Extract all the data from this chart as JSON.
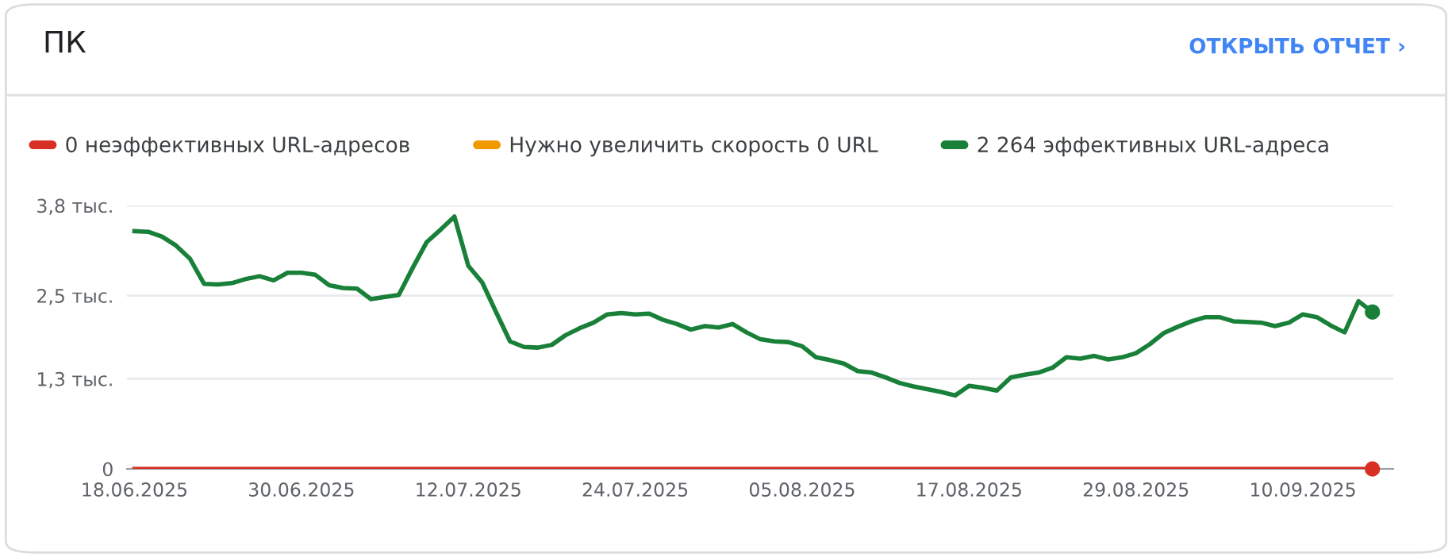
{
  "chart_data": {
    "type": "line",
    "title": "ПК",
    "annotations": [
      "ОТКРЫТЬ ОТЧЕТ ›"
    ],
    "x": [
      "2025-06-18",
      "2025-06-19",
      "2025-06-20",
      "2025-06-21",
      "2025-06-22",
      "2025-06-23",
      "2025-06-24",
      "2025-06-25",
      "2025-06-26",
      "2025-06-27",
      "2025-06-28",
      "2025-06-29",
      "2025-06-30",
      "2025-07-01",
      "2025-07-02",
      "2025-07-03",
      "2025-07-04",
      "2025-07-05",
      "2025-07-06",
      "2025-07-07",
      "2025-07-08",
      "2025-07-09",
      "2025-07-10",
      "2025-07-11",
      "2025-07-12",
      "2025-07-13",
      "2025-07-14",
      "2025-07-15",
      "2025-07-16",
      "2025-07-17",
      "2025-07-18",
      "2025-07-19",
      "2025-07-20",
      "2025-07-21",
      "2025-07-22",
      "2025-07-23",
      "2025-07-24",
      "2025-07-25",
      "2025-07-26",
      "2025-07-27",
      "2025-07-28",
      "2025-07-29",
      "2025-07-30",
      "2025-07-31",
      "2025-08-01",
      "2025-08-02",
      "2025-08-03",
      "2025-08-04",
      "2025-08-05",
      "2025-08-06",
      "2025-08-07",
      "2025-08-08",
      "2025-08-09",
      "2025-08-10",
      "2025-08-11",
      "2025-08-12",
      "2025-08-13",
      "2025-08-14",
      "2025-08-15",
      "2025-08-16",
      "2025-08-17",
      "2025-08-18",
      "2025-08-19",
      "2025-08-20",
      "2025-08-21",
      "2025-08-22",
      "2025-08-23",
      "2025-08-24",
      "2025-08-25",
      "2025-08-26",
      "2025-08-27",
      "2025-08-28",
      "2025-08-29",
      "2025-08-30",
      "2025-08-31",
      "2025-09-01",
      "2025-09-02",
      "2025-09-03",
      "2025-09-04",
      "2025-09-05",
      "2025-09-06",
      "2025-09-07",
      "2025-09-08",
      "2025-09-09",
      "2025-09-10",
      "2025-09-11",
      "2025-09-12",
      "2025-09-13",
      "2025-09-14",
      "2025-09-15"
    ],
    "series": [
      {
        "name": "0 неэффективных URL-адресов",
        "color": "#d93025",
        "values": [
          0,
          0,
          0,
          0,
          0,
          0,
          0,
          0,
          0,
          0,
          0,
          0,
          0,
          0,
          0,
          0,
          0,
          0,
          0,
          0,
          0,
          0,
          0,
          0,
          0,
          0,
          0,
          0,
          0,
          0,
          0,
          0,
          0,
          0,
          0,
          0,
          0,
          0,
          0,
          0,
          0,
          0,
          0,
          0,
          0,
          0,
          0,
          0,
          0,
          0,
          0,
          0,
          0,
          0,
          0,
          0,
          0,
          0,
          0,
          0,
          0,
          0,
          0,
          0,
          0,
          0,
          0,
          0,
          0,
          0,
          0,
          0,
          0,
          0,
          0,
          0,
          0,
          0,
          0,
          0,
          0,
          0,
          0,
          0,
          0,
          0,
          0,
          0,
          0,
          0
        ]
      },
      {
        "name": "Нужно увеличить скорость 0 URL",
        "color": "#f29900",
        "values": [
          null,
          null,
          null,
          null,
          null,
          null,
          null,
          null,
          null,
          null,
          null,
          null,
          null,
          null,
          null,
          null,
          null,
          null,
          null,
          null,
          null,
          null,
          null,
          null,
          null,
          null,
          null,
          null,
          null,
          null,
          null,
          null,
          null,
          null,
          null,
          null,
          null,
          null,
          null,
          null,
          null,
          null,
          null,
          null,
          null,
          null,
          null,
          null,
          null,
          null,
          null,
          null,
          null,
          null,
          null,
          null,
          null,
          null,
          null,
          null,
          null,
          null,
          null,
          null,
          null,
          null,
          null,
          null,
          null,
          null,
          null,
          null,
          null,
          null,
          null,
          null,
          null,
          null,
          null,
          null,
          null,
          null,
          null,
          null,
          null,
          null,
          null,
          null,
          null,
          null
        ]
      },
      {
        "name": "2 264 эффективных URL-адреса",
        "color": "#188038",
        "values": [
          3.43,
          3.42,
          3.35,
          3.22,
          3.03,
          2.67,
          2.66,
          2.68,
          2.74,
          2.78,
          2.72,
          2.83,
          2.83,
          2.8,
          2.65,
          2.61,
          2.6,
          2.45,
          2.48,
          2.51,
          2.9,
          3.27,
          3.45,
          3.64,
          2.93,
          2.69,
          2.26,
          1.84,
          1.76,
          1.75,
          1.79,
          1.93,
          2.03,
          2.11,
          2.23,
          2.25,
          2.23,
          2.24,
          2.15,
          2.09,
          2.01,
          2.06,
          2.04,
          2.09,
          1.97,
          1.87,
          1.84,
          1.83,
          1.77,
          1.61,
          1.57,
          1.52,
          1.41,
          1.39,
          1.32,
          1.24,
          1.19,
          1.15,
          1.11,
          1.06,
          1.2,
          1.17,
          1.13,
          1.32,
          1.36,
          1.39,
          1.46,
          1.61,
          1.59,
          1.63,
          1.58,
          1.61,
          1.67,
          1.8,
          1.96,
          2.05,
          2.13,
          2.19,
          2.19,
          2.13,
          2.12,
          2.11,
          2.06,
          2.11,
          2.23,
          2.19,
          2.07,
          1.97,
          2.42,
          2.264
        ]
      }
    ],
    "xlim": [
      "2025-06-17T11:00",
      "2025-09-16T12:00"
    ],
    "xticks": [
      {
        "value": "2025-06-18",
        "label": "18.06.2025"
      },
      {
        "value": "2025-06-30",
        "label": "30.06.2025"
      },
      {
        "value": "2025-07-12",
        "label": "12.07.2025"
      },
      {
        "value": "2025-07-24",
        "label": "24.07.2025"
      },
      {
        "value": "2025-08-05",
        "label": "05.08.2025"
      },
      {
        "value": "2025-08-17",
        "label": "17.08.2025"
      },
      {
        "value": "2025-08-29",
        "label": "29.08.2025"
      },
      {
        "value": "2025-09-10",
        "label": "10.09.2025"
      }
    ],
    "ylim": [
      0,
      3.8
    ],
    "yticks": [
      0,
      {
        "value": 1.3,
        "label": "1,3 тыс."
      },
      {
        "value": 2.5,
        "label": "2,5 тыс."
      },
      {
        "value": 3.8,
        "label": "3,8 тыс."
      }
    ],
    "grid": "y",
    "legend": "top left"
  }
}
